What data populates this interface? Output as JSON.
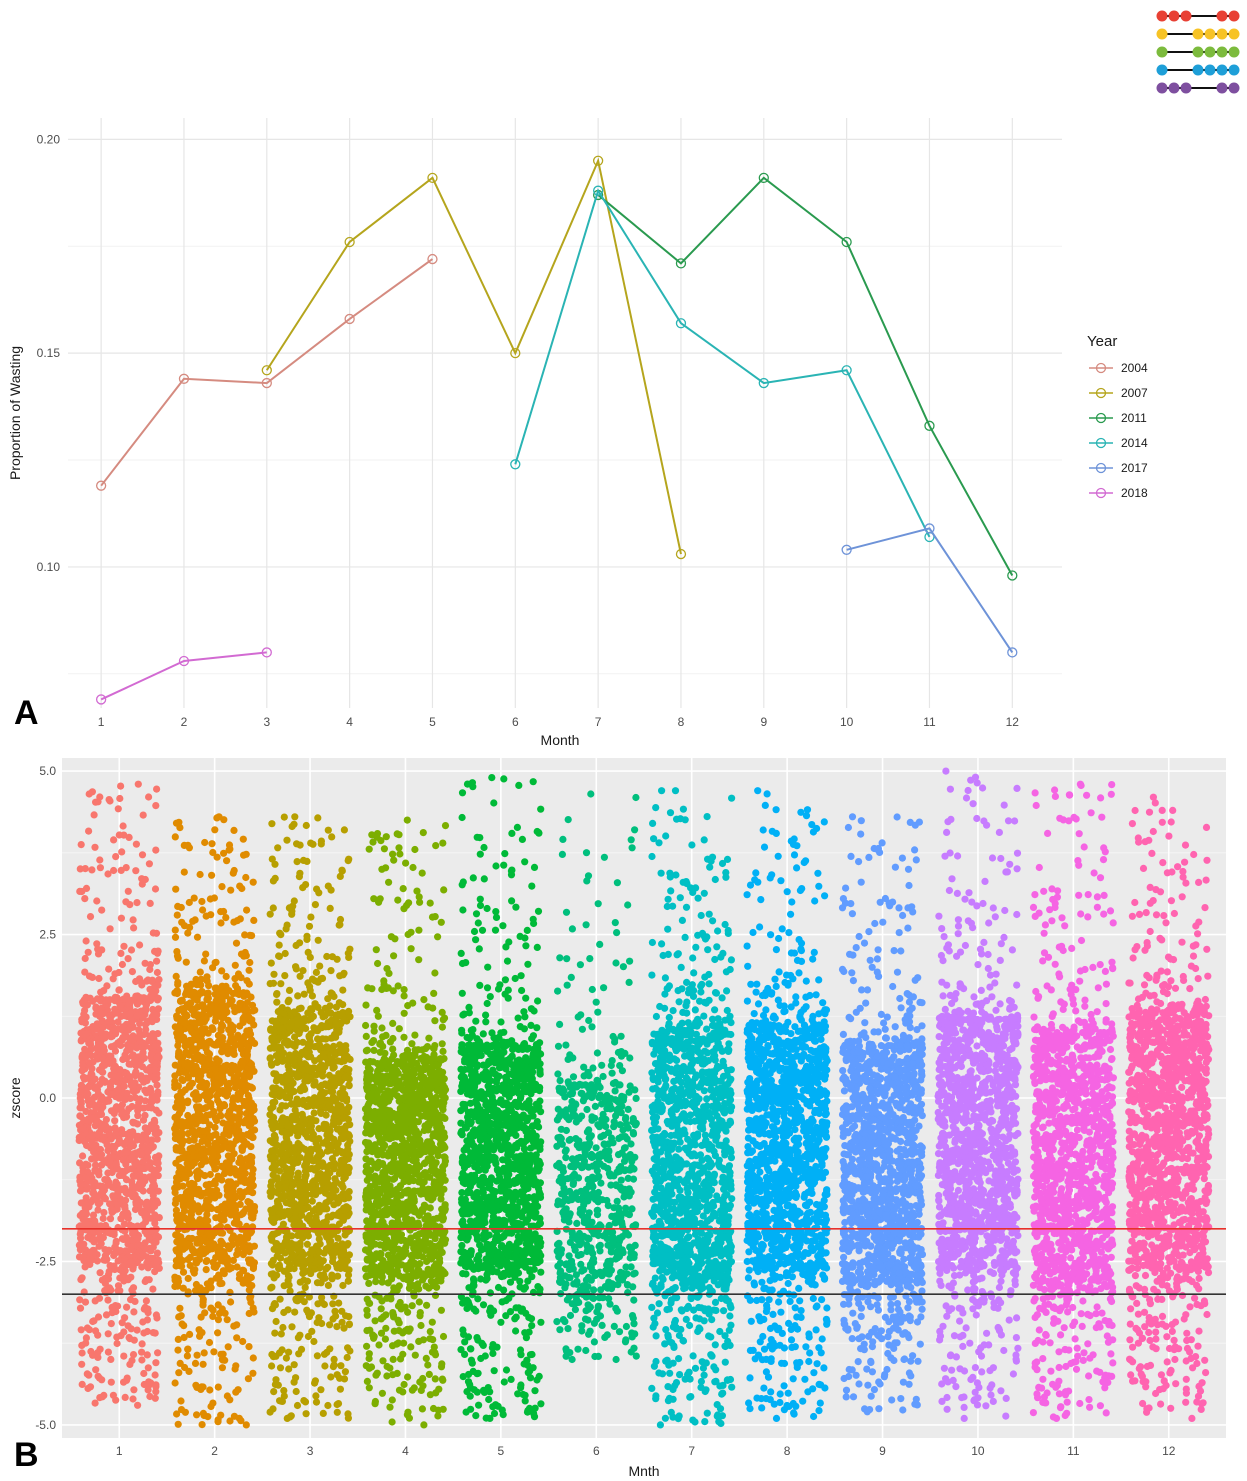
{
  "panels": {
    "a": {
      "label": "A"
    },
    "b": {
      "label": "B"
    }
  },
  "colors": {
    "logo_rows": [
      "#e84034",
      "#f7c325",
      "#7cbb3d",
      "#1e9fd8",
      "#7e4f9f"
    ]
  },
  "chart_data": [
    {
      "type": "line",
      "xlabel": "Month",
      "ylabel": "Proportion of Wasting",
      "x_ticks": [
        "1",
        "2",
        "3",
        "4",
        "5",
        "6",
        "7",
        "8",
        "9",
        "10",
        "11",
        "12"
      ],
      "y_ticks": [
        "0.10",
        "0.15",
        "0.20"
      ],
      "ylim": [
        0.067,
        0.205
      ],
      "xlim": [
        0.6,
        12.6
      ],
      "grid": true,
      "legend": {
        "title": "Year",
        "position": "right"
      },
      "series": [
        {
          "name": "2004",
          "color": "#d58b80",
          "x": [
            1,
            2,
            3,
            4,
            5
          ],
          "y": [
            0.119,
            0.144,
            0.143,
            0.158,
            0.172
          ]
        },
        {
          "name": "2007",
          "color": "#b5a51d",
          "x": [
            3,
            4,
            5,
            6,
            7,
            8
          ],
          "y": [
            0.146,
            0.176,
            0.191,
            0.15,
            0.195,
            0.103
          ]
        },
        {
          "name": "2011",
          "color": "#2a9a4f",
          "x": [
            7,
            8,
            9,
            10,
            11,
            12
          ],
          "y": [
            0.187,
            0.171,
            0.191,
            0.176,
            0.133,
            0.098
          ]
        },
        {
          "name": "2014",
          "color": "#2ab4b4",
          "x": [
            6,
            7,
            8,
            9,
            10,
            11
          ],
          "y": [
            0.124,
            0.188,
            0.157,
            0.143,
            0.146,
            0.107
          ]
        },
        {
          "name": "2017",
          "color": "#6e93d8",
          "x": [
            10,
            11,
            12
          ],
          "y": [
            0.104,
            0.109,
            0.08
          ]
        },
        {
          "name": "2018",
          "color": "#d26ad2",
          "x": [
            1,
            2,
            3
          ],
          "y": [
            0.069,
            0.078,
            0.08
          ]
        }
      ]
    },
    {
      "type": "scatter",
      "xlabel": "Mnth",
      "ylabel": "zscore",
      "x_ticks": [
        "1",
        "2",
        "3",
        "4",
        "5",
        "6",
        "7",
        "8",
        "9",
        "10",
        "11",
        "12"
      ],
      "y_ticks": [
        "-5.0",
        "-2.5",
        "0.0",
        "2.5",
        "5.0"
      ],
      "ylim": [
        -5.2,
        5.2
      ],
      "xlim": [
        0.4,
        12.6
      ],
      "grid": true,
      "jitter_width": 0.42,
      "reference_lines": [
        {
          "y": -2.0,
          "color": "#e8312a"
        },
        {
          "y": -3.0,
          "color": "#333333"
        }
      ],
      "groups": [
        {
          "month": 1,
          "color": "#f8766d",
          "core": [
            -2.5,
            1.5
          ],
          "upper_max": 4.8,
          "lower_min": -4.7,
          "density": 1.0
        },
        {
          "month": 2,
          "color": "#e08b00",
          "core": [
            -2.5,
            1.6
          ],
          "upper_max": 4.3,
          "lower_min": -5.0,
          "density": 1.0
        },
        {
          "month": 3,
          "color": "#b79f00",
          "core": [
            -2.6,
            1.3
          ],
          "upper_max": 4.3,
          "lower_min": -4.9,
          "density": 1.0
        },
        {
          "month": 4,
          "color": "#7cae00",
          "core": [
            -2.7,
            0.6
          ],
          "upper_max": 4.25,
          "lower_min": -5.0,
          "density": 1.0
        },
        {
          "month": 5,
          "color": "#00ba38",
          "core": [
            -2.6,
            0.8
          ],
          "upper_max": 4.9,
          "lower_min": -4.9,
          "density": 1.0
        },
        {
          "month": 6,
          "color": "#00bf7d",
          "core": [
            -2.8,
            0.2
          ],
          "upper_max": 4.65,
          "lower_min": -4.0,
          "density": 0.45
        },
        {
          "month": 7,
          "color": "#00bfc4",
          "core": [
            -2.9,
            1.1
          ],
          "upper_max": 4.7,
          "lower_min": -5.0,
          "density": 1.0
        },
        {
          "month": 8,
          "color": "#00b0f6",
          "core": [
            -2.6,
            1.1
          ],
          "upper_max": 4.7,
          "lower_min": -4.9,
          "density": 1.0
        },
        {
          "month": 9,
          "color": "#619cff",
          "core": [
            -2.8,
            0.8
          ],
          "upper_max": 4.3,
          "lower_min": -4.8,
          "density": 1.0
        },
        {
          "month": 10,
          "color": "#c77cff",
          "core": [
            -2.5,
            1.2
          ],
          "upper_max": 5.0,
          "lower_min": -4.9,
          "density": 1.0
        },
        {
          "month": 11,
          "color": "#f564e3",
          "core": [
            -2.8,
            1.0
          ],
          "upper_max": 4.8,
          "lower_min": -4.9,
          "density": 1.0
        },
        {
          "month": 12,
          "color": "#ff64b0",
          "core": [
            -2.6,
            1.3
          ],
          "upper_max": 4.6,
          "lower_min": -4.9,
          "density": 1.0
        }
      ]
    }
  ]
}
